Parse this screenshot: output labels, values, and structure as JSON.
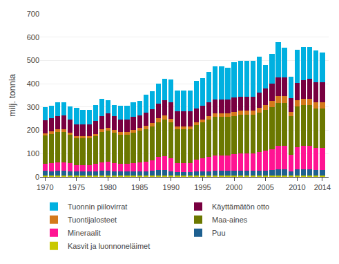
{
  "chart_data": {
    "type": "bar",
    "stacked": true,
    "ylabel": "milj. tonnia",
    "x": [
      1970,
      1971,
      1972,
      1973,
      1974,
      1975,
      1976,
      1977,
      1978,
      1979,
      1980,
      1981,
      1982,
      1983,
      1984,
      1985,
      1986,
      1987,
      1988,
      1989,
      1990,
      1991,
      1992,
      1993,
      1994,
      1995,
      1996,
      1997,
      1998,
      1999,
      2000,
      2001,
      2002,
      2003,
      2004,
      2005,
      2006,
      2007,
      2008,
      2009,
      2010,
      2011,
      2012,
      2013,
      2014
    ],
    "series": [
      {
        "name": "Kasvit ja luonnoneläimet",
        "color": "#c8c800",
        "values": [
          5,
          5,
          5,
          5,
          5,
          5,
          5,
          5,
          5,
          5,
          5,
          5,
          5,
          5,
          5,
          5,
          5,
          5,
          5,
          5,
          5,
          5,
          5,
          5,
          5,
          5,
          5,
          5,
          5,
          5,
          5,
          5,
          5,
          5,
          5,
          5,
          5,
          5,
          5,
          5,
          5,
          5,
          5,
          5,
          5
        ]
      },
      {
        "name": "Puu",
        "color": "#1e6090",
        "values": [
          22,
          20,
          22,
          22,
          20,
          18,
          18,
          18,
          20,
          22,
          22,
          20,
          18,
          18,
          20,
          20,
          20,
          22,
          25,
          25,
          20,
          15,
          15,
          15,
          18,
          20,
          20,
          22,
          22,
          22,
          22,
          22,
          22,
          22,
          22,
          22,
          25,
          28,
          28,
          20,
          28,
          28,
          28,
          25,
          25
        ]
      },
      {
        "name": "Mineraalit",
        "color": "#ff1493",
        "values": [
          30,
          35,
          35,
          35,
          35,
          28,
          28,
          28,
          30,
          35,
          38,
          35,
          32,
          32,
          35,
          38,
          40,
          45,
          55,
          60,
          55,
          40,
          40,
          40,
          50,
          55,
          60,
          65,
          65,
          65,
          70,
          75,
          75,
          75,
          80,
          85,
          90,
          100,
          100,
          70,
          95,
          100,
          100,
          95,
          95
        ]
      },
      {
        "name": "Maa-aines",
        "color": "#6b7800",
        "values": [
          120,
          125,
          130,
          130,
          120,
          115,
          115,
          115,
          120,
          130,
          135,
          130,
          125,
          125,
          130,
          135,
          140,
          145,
          150,
          155,
          155,
          145,
          145,
          145,
          150,
          155,
          160,
          165,
          165,
          165,
          165,
          165,
          165,
          165,
          170,
          175,
          180,
          185,
          185,
          165,
          175,
          175,
          175,
          170,
          170
        ]
      },
      {
        "name": "Tuontijalosteet",
        "color": "#d4791a",
        "values": [
          10,
          10,
          12,
          12,
          10,
          10,
          10,
          10,
          10,
          12,
          12,
          12,
          12,
          12,
          12,
          12,
          15,
          15,
          18,
          18,
          15,
          12,
          12,
          12,
          12,
          12,
          15,
          15,
          15,
          15,
          18,
          18,
          18,
          18,
          20,
          22,
          25,
          28,
          28,
          18,
          25,
          28,
          28,
          25,
          25
        ]
      },
      {
        "name": "Käyttämätön otto",
        "color": "#780040",
        "values": [
          55,
          58,
          58,
          60,
          55,
          50,
          50,
          50,
          55,
          58,
          60,
          58,
          55,
          55,
          55,
          55,
          55,
          58,
          60,
          65,
          70,
          65,
          65,
          65,
          60,
          60,
          60,
          60,
          60,
          60,
          60,
          60,
          60,
          60,
          65,
          70,
          75,
          80,
          80,
          60,
          75,
          80,
          85,
          85,
          85
        ]
      },
      {
        "name": "Tuonnin piilovirrat",
        "color": "#00b0e0",
        "values": [
          58,
          54,
          58,
          56,
          58,
          72,
          62,
          62,
          68,
          72,
          58,
          48,
          58,
          58,
          62,
          62,
          78,
          78,
          88,
          92,
          98,
          88,
          88,
          88,
          118,
          118,
          132,
          142,
          142,
          138,
          152,
          152,
          152,
          152,
          153,
          103,
          128,
          152,
          128,
          93,
          142,
          142,
          138,
          138,
          128
        ]
      }
    ],
    "xlim": [
      1969.2,
      2015.0
    ],
    "xticks": [
      1970,
      1975,
      1980,
      1985,
      1990,
      1995,
      2000,
      2005,
      2010,
      2014
    ],
    "ylim": [
      0,
      700
    ],
    "yticks": [
      0,
      100,
      200,
      300,
      400,
      500,
      600,
      700
    ],
    "grid": "y",
    "legend": "bottom"
  }
}
